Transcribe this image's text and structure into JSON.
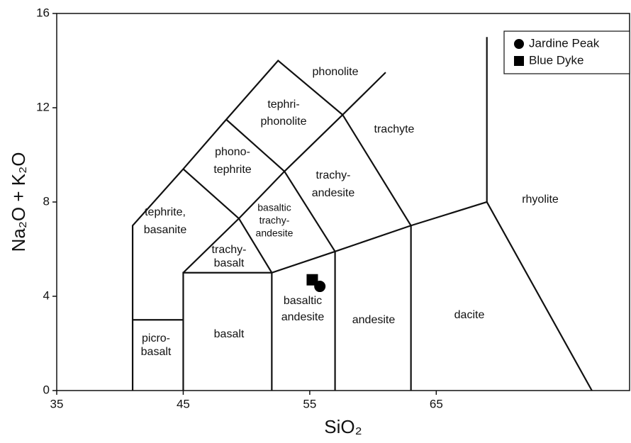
{
  "chart_data": {
    "type": "scatter",
    "x_label": "SiO₂",
    "y_label": "Na₂O + K₂O",
    "xlim": [
      35,
      80
    ],
    "ylim": [
      0,
      16
    ],
    "xticks": [
      35,
      45,
      55,
      65
    ],
    "yticks": [
      0,
      4,
      8,
      12,
      16
    ],
    "series": [
      {
        "name": "Jardine Peak",
        "color": "#000000",
        "marker": "circle",
        "x": [
          55.8
        ],
        "values": [
          4.42
        ]
      },
      {
        "name": "Blue Dyke",
        "color": "#000000",
        "marker": "square",
        "x": [
          55.2
        ],
        "values": [
          4.7
        ]
      }
    ],
    "boundaries": [
      {
        "x": [
          41,
          41,
          45,
          48.4,
          52.5,
          57.6,
          63,
          63
        ],
        "y": [
          0,
          7,
          9.4,
          11.5,
          14,
          11.7,
          7,
          0
        ]
      },
      {
        "x": [
          41,
          45
        ],
        "y": [
          3,
          3
        ]
      },
      {
        "x": [
          45,
          45,
          52,
          57,
          63,
          69,
          77.3
        ],
        "y": [
          0,
          5,
          5,
          5.9,
          7,
          8,
          0
        ]
      },
      {
        "x": [
          69,
          69
        ],
        "y": [
          8,
          15
        ]
      },
      {
        "x": [
          52,
          52
        ],
        "y": [
          0,
          5
        ]
      },
      {
        "x": [
          57,
          57
        ],
        "y": [
          0,
          5.9
        ]
      },
      {
        "x": [
          45,
          49.4,
          53,
          57.6,
          61
        ],
        "y": [
          5,
          7.3,
          9.3,
          11.7,
          13.5
        ]
      },
      {
        "x": [
          45,
          49.4
        ],
        "y": [
          9.4,
          7.3
        ]
      },
      {
        "x": [
          48.4,
          53
        ],
        "y": [
          11.5,
          9.3
        ]
      },
      {
        "x": [
          52,
          49.4
        ],
        "y": [
          5,
          7.3
        ]
      },
      {
        "x": [
          57,
          53
        ],
        "y": [
          5.9,
          9.3
        ]
      }
    ],
    "field_labels": [
      [
        "phonolite"
      ],
      [
        "tephri-",
        "phonolite"
      ],
      [
        "trachyte"
      ],
      [
        "phono-",
        "tephrite"
      ],
      [
        "trachy-",
        "andesite"
      ],
      [
        "rhyolite"
      ],
      [
        "tephrite,",
        "basanite"
      ],
      [
        "basaltic",
        "trachy-",
        "andesite"
      ],
      [
        "trachy-",
        "basalt"
      ],
      [
        "basaltic",
        "andesite"
      ],
      [
        "andesite"
      ],
      [
        "dacite"
      ],
      [
        "basalt"
      ],
      [
        "picro-",
        "basalt"
      ]
    ]
  }
}
